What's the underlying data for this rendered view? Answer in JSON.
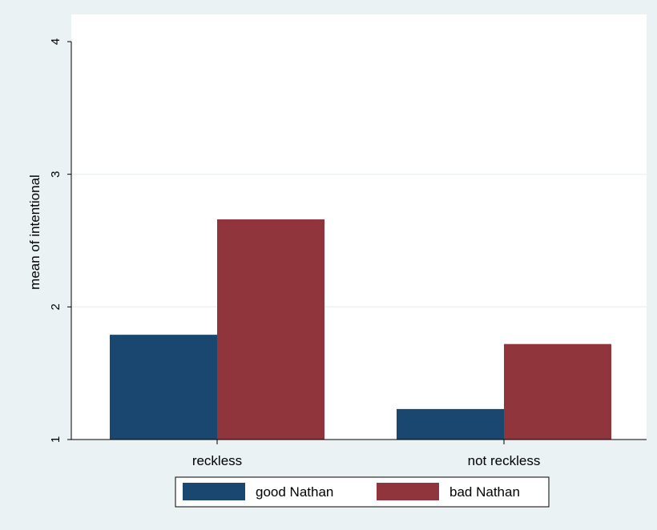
{
  "chart_data": {
    "type": "bar",
    "categories": [
      "reckless",
      "not reckless"
    ],
    "series": [
      {
        "name": "good Nathan",
        "values": [
          1.79,
          1.23
        ]
      },
      {
        "name": "bad Nathan",
        "values": [
          2.66,
          1.72
        ]
      }
    ],
    "ylabel": "mean of intentional",
    "xlabel": "",
    "ylim": [
      1,
      4
    ],
    "yticks": [
      1,
      2,
      3,
      4
    ],
    "grid": true,
    "legend": "bottom",
    "colors": {
      "series": [
        "#1a476f",
        "#90353b"
      ],
      "background": "#eaf2f3",
      "plot": "#ffffff",
      "grid": "#eaf2f3"
    }
  }
}
